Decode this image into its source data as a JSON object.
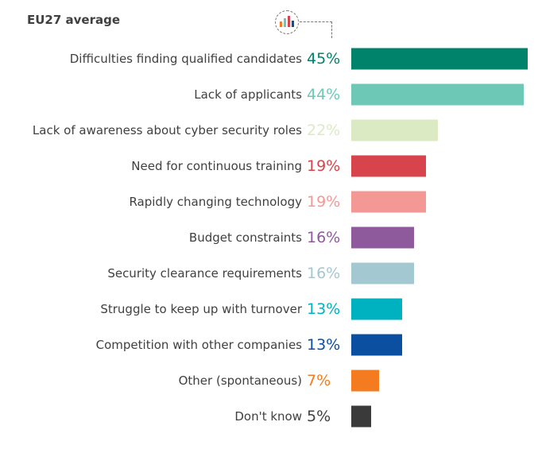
{
  "chart_data": {
    "type": "bar",
    "orientation": "horizontal",
    "title": "EU27 average",
    "xlim": [
      0,
      45
    ],
    "categories": [
      "Difficulties finding qualified candidates",
      "Lack of applicants",
      "Lack of awareness about cyber security roles",
      "Need for continuous training",
      "Rapidly changing technology",
      "Budget constraints",
      "Security clearance requirements",
      "Struggle to keep up with turnover",
      "Competition with other companies",
      "Other (spontaneous)",
      "Don't know"
    ],
    "values": [
      45,
      44,
      22,
      19,
      19,
      16,
      16,
      13,
      13,
      7,
      5
    ],
    "labels": [
      "45%",
      "44%",
      "22%",
      "19%",
      "19%",
      "16%",
      "16%",
      "13%",
      "13%",
      "7%",
      "5%"
    ],
    "colors": [
      "#00836b",
      "#6dc9b6",
      "#dbeac3",
      "#d8444b",
      "#f49896",
      "#8f5a9b",
      "#a3c8d1",
      "#00b1bf",
      "#0b4fa0",
      "#f47b20",
      "#3a3a3a"
    ]
  }
}
